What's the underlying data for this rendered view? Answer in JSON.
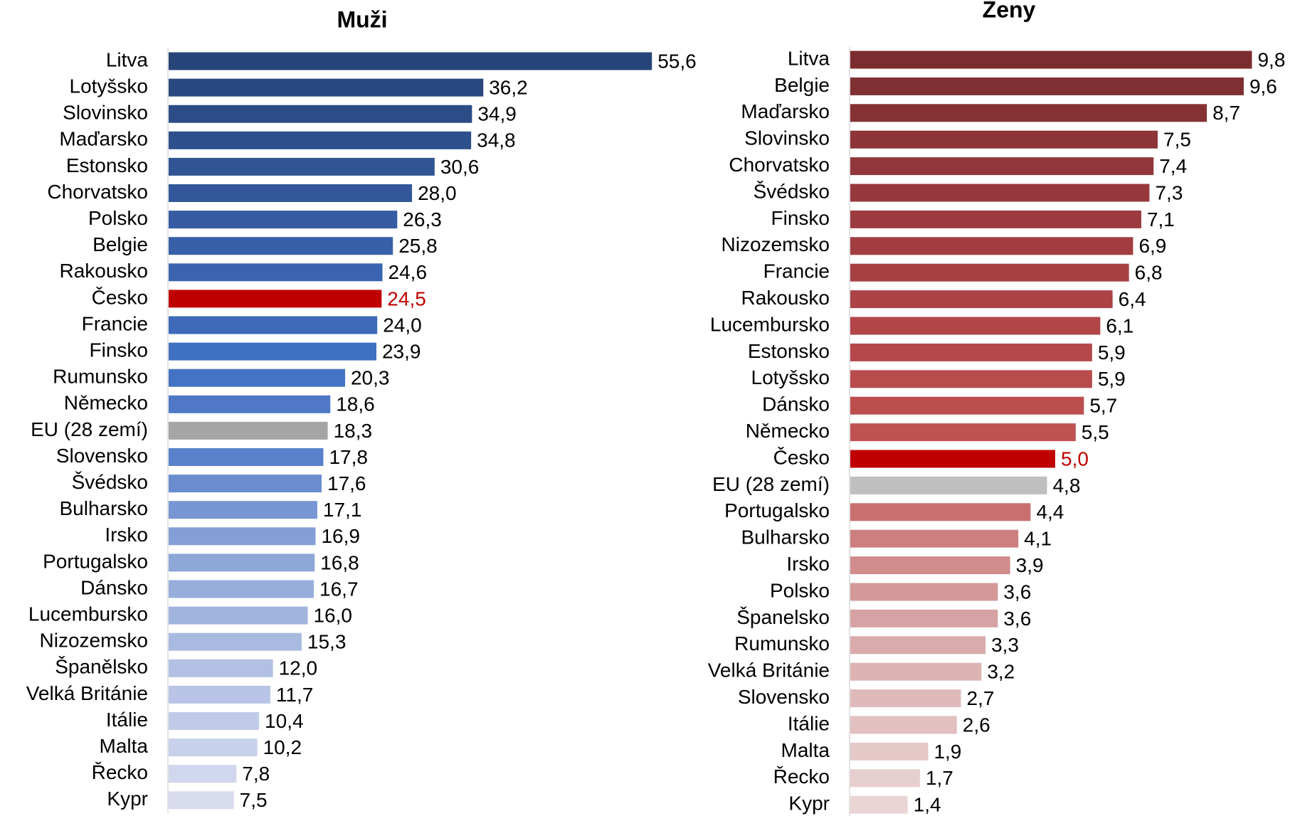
{
  "chart_data": [
    {
      "type": "hbar",
      "title": "Muži",
      "categories": [
        "Litva",
        "Lotyšsko",
        "Slovinsko",
        "Maďarsko",
        "Estonsko",
        "Chorvatsko",
        "Polsko",
        "Belgie",
        "Rakousko",
        "Česko",
        "Francie",
        "Finsko",
        "Rumunsko",
        "Německo",
        "EU (28 zemí)",
        "Slovensko",
        "Švédsko",
        "Bulharsko",
        "Irsko",
        "Portugalsko",
        "Dánsko",
        "Lucembursko",
        "Nizozemsko",
        "Španělsko",
        "Velká Británie",
        "Itálie",
        "Malta",
        "Řecko",
        "Kypr"
      ],
      "values": [
        55.6,
        36.2,
        34.9,
        34.8,
        30.6,
        28.0,
        26.3,
        25.8,
        24.6,
        24.5,
        24.0,
        23.9,
        20.3,
        18.6,
        18.3,
        17.8,
        17.6,
        17.1,
        16.9,
        16.8,
        16.7,
        16.0,
        15.3,
        12.0,
        11.7,
        10.4,
        10.2,
        7.8,
        7.5
      ],
      "value_labels": [
        "55,6",
        "36,2",
        "34,9",
        "34,8",
        "30,6",
        "28,0",
        "26,3",
        "25,8",
        "24,6",
        "24,5",
        "24,0",
        "23,9",
        "20,3",
        "18,6",
        "18,3",
        "17,8",
        "17,6",
        "17,1",
        "16,9",
        "16,8",
        "16,7",
        "16,0",
        "15,3",
        "12,0",
        "11,7",
        "10,4",
        "10,2",
        "7,8",
        "7,5"
      ],
      "colors": [
        "#264478",
        "#28487f",
        "#2b4c86",
        "#2d508d",
        "#305494",
        "#32589b",
        "#355ca2",
        "#3760a9",
        "#3a64b0",
        "#c00000",
        "#3d6ab9",
        "#4070c0",
        "#4472c4",
        "#4f79c7",
        "#a5a5a5",
        "#5a81cb",
        "#6a8dd0",
        "#7896d3",
        "#859fd6",
        "#8ea7d9",
        "#97aedc",
        "#a0b4de",
        "#a9bae1",
        "#b1c0e3",
        "#b8c5e6",
        "#c0cbe9",
        "#c8d1eb",
        "#d0d6ed",
        "#d9dcef"
      ],
      "xlim": [
        0,
        60
      ]
    },
    {
      "type": "hbar",
      "title": "Ženy",
      "categories": [
        "Litva",
        "Belgie",
        "Maďarsko",
        "Slovinsko",
        "Chorvatsko",
        "Švédsko",
        "Finsko",
        "Nizozemsko",
        "Francie",
        "Rakousko",
        "Lucembursko",
        "Estonsko",
        "Lotyšsko",
        "Dánsko",
        "Německo",
        "Česko",
        "EU (28 zemí)",
        "Portugalsko",
        "Bulharsko",
        "Irsko",
        "Polsko",
        "Španelsko",
        "Rumunsko",
        "Velká Británie",
        "Slovensko",
        "Itálie",
        "Malta",
        "Řecko",
        "Kypr"
      ],
      "values": [
        9.8,
        9.6,
        8.7,
        7.5,
        7.4,
        7.3,
        7.1,
        6.9,
        6.8,
        6.4,
        6.1,
        5.9,
        5.9,
        5.7,
        5.5,
        5.0,
        4.8,
        4.4,
        4.1,
        3.9,
        3.6,
        3.6,
        3.3,
        3.2,
        2.7,
        2.6,
        1.9,
        1.7,
        1.4
      ],
      "value_labels": [
        "9,8",
        "9,6",
        "8,7",
        "7,5",
        "7,4",
        "7,3",
        "7,1",
        "6,9",
        "6,8",
        "6,4",
        "6,1",
        "5,9",
        "5,9",
        "5,7",
        "5,5",
        "5,0",
        "4,8",
        "4,4",
        "4,1",
        "3,9",
        "3,6",
        "3,6",
        "3,3",
        "3,2",
        "2,7",
        "2,6",
        "1,9",
        "1,7",
        "1,4"
      ],
      "colors": [
        "#7b2c2f",
        "#802f32",
        "#863134",
        "#8c3437",
        "#91363a",
        "#97393c",
        "#9c3b3f",
        "#a23e41",
        "#a74043",
        "#ac4346",
        "#b14548",
        "#b5484b",
        "#b94b4d",
        "#bd4e50",
        "#c05153",
        "#c00000",
        "#bfbfbf",
        "#c96f70",
        "#cd7f80",
        "#d18c8d",
        "#d49899",
        "#d7a2a3",
        "#d9abab",
        "#dcb3b3",
        "#dfbaba",
        "#e2c0c0",
        "#e5c8c8",
        "#e7cece",
        "#ead4d4"
      ],
      "xlim": [
        0,
        10
      ]
    }
  ]
}
